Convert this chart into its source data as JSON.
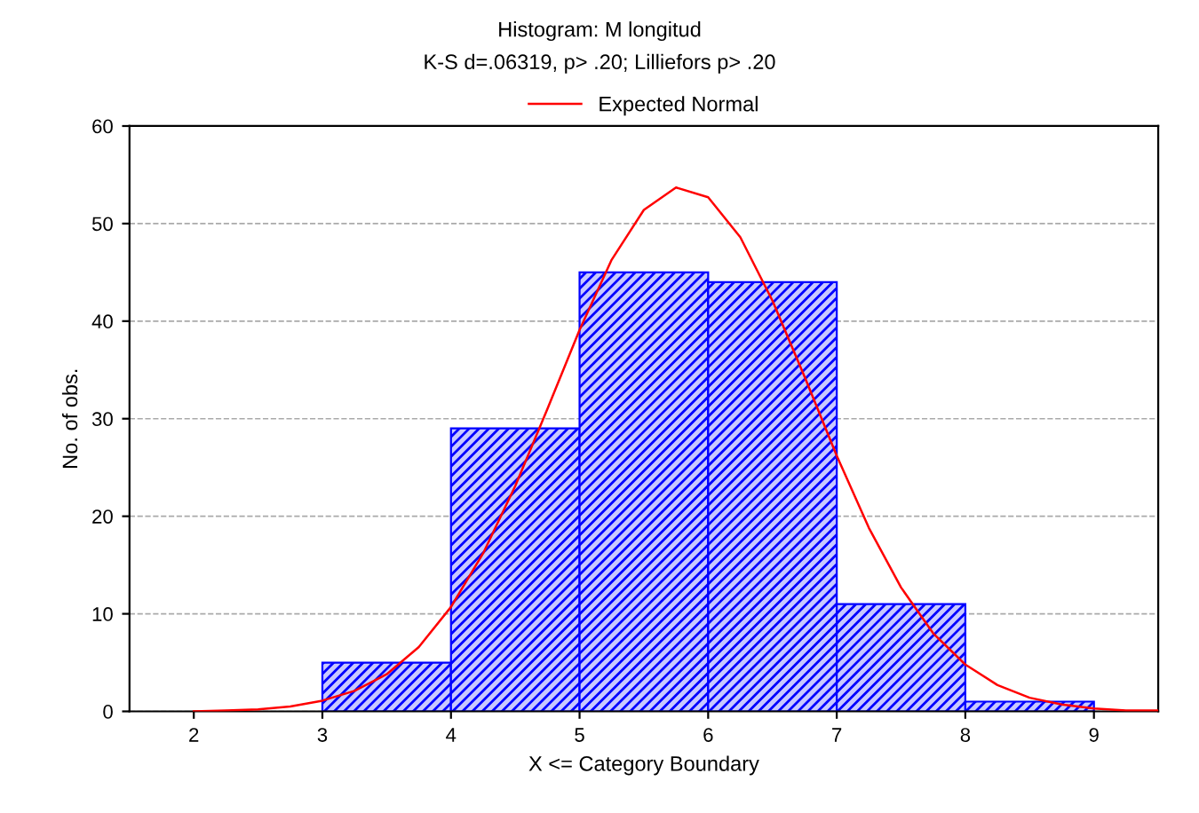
{
  "chart_data": {
    "type": "histogram",
    "title": "Histogram: M longitud",
    "subtitle": "K-S d=.06319, p> .20; Lilliefors p> .20",
    "xlabel": "X <= Category Boundary",
    "ylabel": "No. of obs.",
    "bins": [
      3,
      4,
      5,
      6,
      7,
      8,
      9
    ],
    "values": [
      5,
      29,
      45,
      44,
      11,
      1
    ],
    "color": "#0000ff",
    "series": [
      {
        "name": "Expected Normal",
        "type": "line",
        "color": "#ff0000",
        "x": [
          2,
          2.25,
          2.5,
          2.75,
          3,
          3.25,
          3.5,
          3.75,
          4,
          4.25,
          4.5,
          4.75,
          5,
          5.25,
          5.5,
          5.75,
          6,
          6.25,
          6.5,
          6.75,
          7,
          7.25,
          7.5,
          7.75,
          8,
          8.25,
          8.5,
          8.75,
          9,
          9.25,
          9.5
        ],
        "values": [
          0,
          0.1,
          0.2,
          0.5,
          1.1,
          2.1,
          3.8,
          6.6,
          10.7,
          16.2,
          23.1,
          31.0,
          39.1,
          46.3,
          51.4,
          53.7,
          52.7,
          48.6,
          42.1,
          34.3,
          26.2,
          18.8,
          12.7,
          8.0,
          4.8,
          2.7,
          1.4,
          0.7,
          0.3,
          0.1,
          0.1
        ]
      }
    ],
    "xlim": [
      1.5,
      9.5
    ],
    "ylim": [
      0,
      60
    ],
    "xticks": [
      2,
      3,
      4,
      5,
      6,
      7,
      8,
      9
    ],
    "yticks": [
      0,
      10,
      20,
      30,
      40,
      50,
      60
    ],
    "grid": "y",
    "legend": "top",
    "marker": "none",
    "line_style": "solid"
  }
}
